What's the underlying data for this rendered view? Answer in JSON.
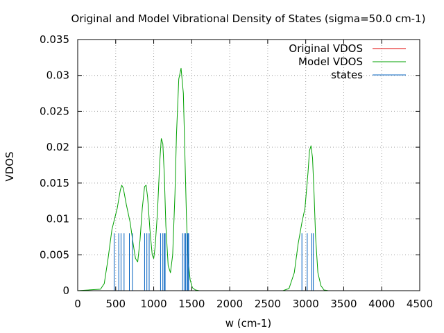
{
  "chart_data": {
    "type": "line",
    "title": "Original and Model Vibrational Density of States (sigma=50.0 cm-1)",
    "xlabel": "w (cm-1)",
    "ylabel": "VDOS",
    "xlim": [
      0,
      4500
    ],
    "ylim": [
      0,
      0.035
    ],
    "x_ticks": [
      0,
      500,
      1000,
      1500,
      2000,
      2500,
      3000,
      3500,
      4000,
      4500
    ],
    "y_ticks": [
      0,
      0.005,
      0.01,
      0.015,
      0.02,
      0.025,
      0.03,
      0.035
    ],
    "x_tick_labels": [
      "0",
      "500",
      "1000",
      "1500",
      "2000",
      "2500",
      "3000",
      "3500",
      "4000",
      "4500"
    ],
    "y_tick_labels": [
      "0",
      "0.005",
      "0.01",
      "0.015",
      "0.02",
      "0.025",
      "0.03",
      "0.035"
    ],
    "grid": true,
    "legend_position": "top-right",
    "series": [
      {
        "name": "Original VDOS",
        "color": "#e00000",
        "style": "line",
        "x": [],
        "y": []
      },
      {
        "name": "Model VDOS",
        "color": "#00a000",
        "style": "line",
        "x": [
          0,
          300,
          350,
          400,
          450,
          480,
          520,
          560,
          580,
          600,
          640,
          690,
          730,
          760,
          790,
          820,
          850,
          880,
          900,
          920,
          950,
          980,
          1000,
          1020,
          1050,
          1080,
          1100,
          1120,
          1140,
          1160,
          1190,
          1220,
          1250,
          1280,
          1300,
          1330,
          1360,
          1390,
          1410,
          1430,
          1450,
          1480,
          1510,
          1550,
          1600,
          1700,
          2700,
          2780,
          2850,
          2900,
          2950,
          2990,
          3030,
          3050,
          3070,
          3090,
          3110,
          3130,
          3160,
          3200,
          3240,
          3300,
          4500
        ],
        "y": [
          0,
          0.0002,
          0.001,
          0.0045,
          0.0085,
          0.0098,
          0.0115,
          0.014,
          0.0147,
          0.0143,
          0.012,
          0.0095,
          0.0065,
          0.0045,
          0.004,
          0.007,
          0.0115,
          0.0145,
          0.0147,
          0.013,
          0.0085,
          0.005,
          0.0045,
          0.0062,
          0.011,
          0.018,
          0.0212,
          0.0205,
          0.016,
          0.009,
          0.0035,
          0.0025,
          0.005,
          0.0135,
          0.0218,
          0.0295,
          0.031,
          0.0275,
          0.019,
          0.0105,
          0.0045,
          0.0015,
          0.0004,
          0.0001,
          0,
          0,
          0,
          0.0003,
          0.0025,
          0.0065,
          0.0095,
          0.0115,
          0.0165,
          0.0195,
          0.0202,
          0.0185,
          0.0135,
          0.0075,
          0.0025,
          0.0007,
          0.0001,
          0,
          0
        ]
      },
      {
        "name": "states",
        "color": "#0060c0",
        "style": "impulse",
        "height": 0.008,
        "x": [
          480,
          540,
          570,
          610,
          680,
          720,
          880,
          910,
          940,
          1090,
          1120,
          1140,
          1150,
          1380,
          1400,
          1420,
          1440,
          1450,
          1460,
          2950,
          3020,
          3080,
          3100
        ]
      }
    ]
  }
}
